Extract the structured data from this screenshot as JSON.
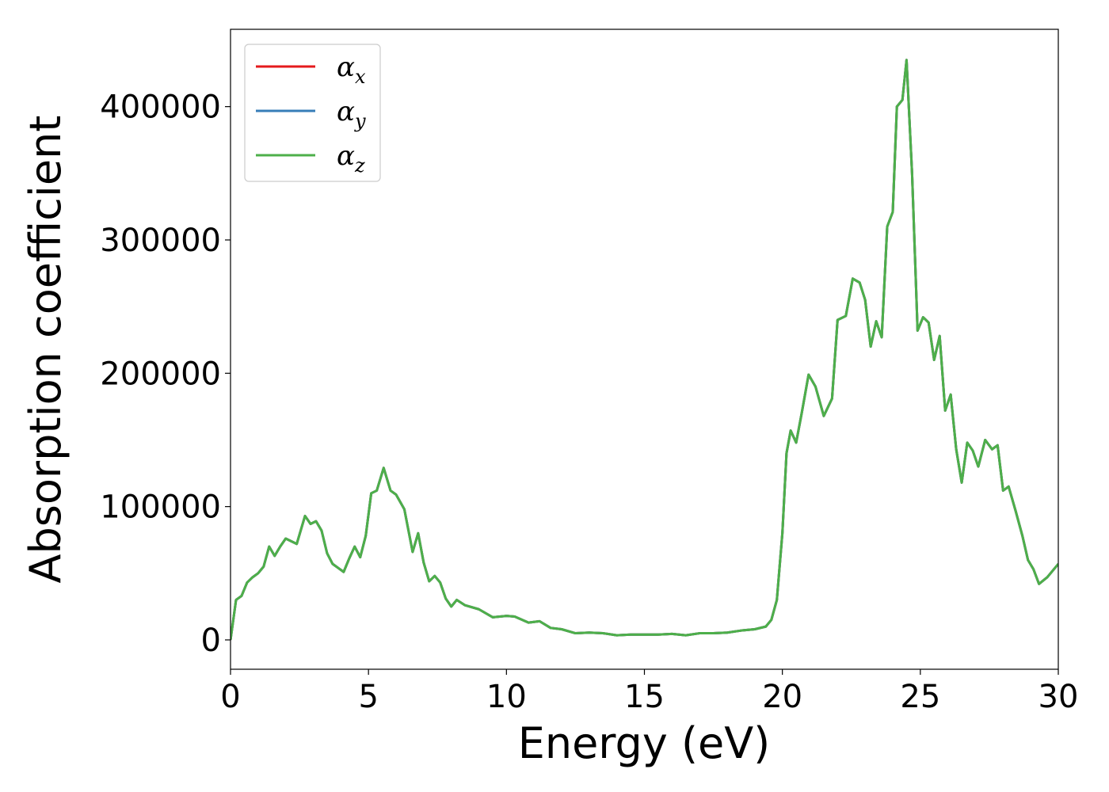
{
  "chart_data": {
    "type": "line",
    "xlabel": "Energy (eV)",
    "ylabel": "Absorption coefficient",
    "xlim": [
      0,
      30
    ],
    "ylim": [
      -22000,
      458000
    ],
    "xticks": [
      0,
      5,
      10,
      15,
      20,
      25,
      30
    ],
    "xtick_labels": [
      "0",
      "5",
      "10",
      "15",
      "20",
      "25",
      "30"
    ],
    "yticks": [
      0,
      100000,
      200000,
      300000,
      400000
    ],
    "ytick_labels": [
      "0",
      "100000",
      "200000",
      "300000",
      "400000"
    ],
    "grid": false,
    "legend_position": "top-left",
    "series": [
      {
        "name": "α_x",
        "symbol": "α",
        "subscript": "x",
        "color": "#e41a1c",
        "x": [
          0,
          0.2,
          0.4,
          0.6,
          0.8,
          1.0,
          1.2,
          1.4,
          1.6,
          1.8,
          2.0,
          2.2,
          2.4,
          2.7,
          2.9,
          3.1,
          3.3,
          3.5,
          3.7,
          3.9,
          4.1,
          4.3,
          4.5,
          4.7,
          4.9,
          5.1,
          5.3,
          5.55,
          5.8,
          6.0,
          6.3,
          6.6,
          6.8,
          7.0,
          7.2,
          7.4,
          7.6,
          7.8,
          8.0,
          8.2,
          8.5,
          9.0,
          9.5,
          10.0,
          10.3,
          10.8,
          11.2,
          11.6,
          12.0,
          12.5,
          13.0,
          13.5,
          14.0,
          14.5,
          15.0,
          15.5,
          16.0,
          16.5,
          17.0,
          17.5,
          18.0,
          18.5,
          19.0,
          19.4,
          19.6,
          19.8,
          20.0,
          20.15,
          20.3,
          20.5,
          20.7,
          20.95,
          21.2,
          21.5,
          21.8,
          22.0,
          22.3,
          22.55,
          22.8,
          23.0,
          23.2,
          23.4,
          23.6,
          23.8,
          24.0,
          24.15,
          24.35,
          24.5,
          24.7,
          24.9,
          25.1,
          25.3,
          25.5,
          25.7,
          25.9,
          26.1,
          26.3,
          26.5,
          26.7,
          26.9,
          27.1,
          27.35,
          27.6,
          27.8,
          28.0,
          28.2,
          28.45,
          28.7,
          28.9,
          29.1,
          29.3,
          29.6,
          29.8,
          30.0
        ],
        "values": [
          0,
          30000,
          33000,
          43000,
          47000,
          50000,
          55000,
          70000,
          63000,
          70000,
          76000,
          74000,
          72000,
          93000,
          87000,
          89000,
          82000,
          65000,
          57000,
          54000,
          51000,
          61000,
          70000,
          62000,
          78000,
          110000,
          112000,
          129000,
          112000,
          109000,
          98000,
          66000,
          80000,
          58000,
          44000,
          48000,
          43000,
          31000,
          25000,
          30000,
          26000,
          23000,
          17000,
          18000,
          17500,
          13000,
          14000,
          9000,
          8000,
          5000,
          5500,
          5000,
          3500,
          4000,
          4000,
          4000,
          4500,
          3500,
          5000,
          5000,
          5500,
          7000,
          8000,
          10000,
          15000,
          30000,
          80000,
          140000,
          157000,
          148000,
          170000,
          199000,
          190000,
          168000,
          181000,
          240000,
          243000,
          271000,
          268000,
          255000,
          220000,
          239000,
          227000,
          310000,
          321000,
          400000,
          405000,
          435000,
          350000,
          232000,
          242000,
          238000,
          210000,
          228000,
          172000,
          184000,
          143000,
          118000,
          148000,
          142000,
          130000,
          150000,
          143000,
          146000,
          112000,
          115000,
          97000,
          78000,
          60000,
          53000,
          42000,
          47000,
          52000,
          57000
        ]
      },
      {
        "name": "α_y",
        "symbol": "α",
        "subscript": "y",
        "color": "#377eb8",
        "x": [
          0,
          0.2,
          0.4,
          0.6,
          0.8,
          1.0,
          1.2,
          1.4,
          1.6,
          1.8,
          2.0,
          2.2,
          2.4,
          2.7,
          2.9,
          3.1,
          3.3,
          3.5,
          3.7,
          3.9,
          4.1,
          4.3,
          4.5,
          4.7,
          4.9,
          5.1,
          5.3,
          5.55,
          5.8,
          6.0,
          6.3,
          6.6,
          6.8,
          7.0,
          7.2,
          7.4,
          7.6,
          7.8,
          8.0,
          8.2,
          8.5,
          9.0,
          9.5,
          10.0,
          10.3,
          10.8,
          11.2,
          11.6,
          12.0,
          12.5,
          13.0,
          13.5,
          14.0,
          14.5,
          15.0,
          15.5,
          16.0,
          16.5,
          17.0,
          17.5,
          18.0,
          18.5,
          19.0,
          19.4,
          19.6,
          19.8,
          20.0,
          20.15,
          20.3,
          20.5,
          20.7,
          20.95,
          21.2,
          21.5,
          21.8,
          22.0,
          22.3,
          22.55,
          22.8,
          23.0,
          23.2,
          23.4,
          23.6,
          23.8,
          24.0,
          24.15,
          24.35,
          24.5,
          24.7,
          24.9,
          25.1,
          25.3,
          25.5,
          25.7,
          25.9,
          26.1,
          26.3,
          26.5,
          26.7,
          26.9,
          27.1,
          27.35,
          27.6,
          27.8,
          28.0,
          28.2,
          28.45,
          28.7,
          28.9,
          29.1,
          29.3,
          29.6,
          29.8,
          30.0
        ],
        "values": [
          0,
          30000,
          33000,
          43000,
          47000,
          50000,
          55000,
          70000,
          63000,
          70000,
          76000,
          74000,
          72000,
          93000,
          87000,
          89000,
          82000,
          65000,
          57000,
          54000,
          51000,
          61000,
          70000,
          62000,
          78000,
          110000,
          112000,
          129000,
          112000,
          109000,
          98000,
          66000,
          80000,
          58000,
          44000,
          48000,
          43000,
          31000,
          25000,
          30000,
          26000,
          23000,
          17000,
          18000,
          17500,
          13000,
          14000,
          9000,
          8000,
          5000,
          5500,
          5000,
          3500,
          4000,
          4000,
          4000,
          4500,
          3500,
          5000,
          5000,
          5500,
          7000,
          8000,
          10000,
          15000,
          30000,
          80000,
          140000,
          157000,
          148000,
          170000,
          199000,
          190000,
          168000,
          181000,
          240000,
          243000,
          271000,
          268000,
          255000,
          220000,
          239000,
          227000,
          310000,
          321000,
          400000,
          405000,
          435000,
          350000,
          232000,
          242000,
          238000,
          210000,
          228000,
          172000,
          184000,
          143000,
          118000,
          148000,
          142000,
          130000,
          150000,
          143000,
          146000,
          112000,
          115000,
          97000,
          78000,
          60000,
          53000,
          42000,
          47000,
          52000,
          57000
        ]
      },
      {
        "name": "α_z",
        "symbol": "α",
        "subscript": "z",
        "color": "#4daf4a",
        "x": [
          0,
          0.2,
          0.4,
          0.6,
          0.8,
          1.0,
          1.2,
          1.4,
          1.6,
          1.8,
          2.0,
          2.2,
          2.4,
          2.7,
          2.9,
          3.1,
          3.3,
          3.5,
          3.7,
          3.9,
          4.1,
          4.3,
          4.5,
          4.7,
          4.9,
          5.1,
          5.3,
          5.55,
          5.8,
          6.0,
          6.3,
          6.6,
          6.8,
          7.0,
          7.2,
          7.4,
          7.6,
          7.8,
          8.0,
          8.2,
          8.5,
          9.0,
          9.5,
          10.0,
          10.3,
          10.8,
          11.2,
          11.6,
          12.0,
          12.5,
          13.0,
          13.5,
          14.0,
          14.5,
          15.0,
          15.5,
          16.0,
          16.5,
          17.0,
          17.5,
          18.0,
          18.5,
          19.0,
          19.4,
          19.6,
          19.8,
          20.0,
          20.15,
          20.3,
          20.5,
          20.7,
          20.95,
          21.2,
          21.5,
          21.8,
          22.0,
          22.3,
          22.55,
          22.8,
          23.0,
          23.2,
          23.4,
          23.6,
          23.8,
          24.0,
          24.15,
          24.35,
          24.5,
          24.7,
          24.9,
          25.1,
          25.3,
          25.5,
          25.7,
          25.9,
          26.1,
          26.3,
          26.5,
          26.7,
          26.9,
          27.1,
          27.35,
          27.6,
          27.8,
          28.0,
          28.2,
          28.45,
          28.7,
          28.9,
          29.1,
          29.3,
          29.6,
          29.8,
          30.0
        ],
        "values": [
          0,
          30000,
          33000,
          43000,
          47000,
          50000,
          55000,
          70000,
          63000,
          70000,
          76000,
          74000,
          72000,
          93000,
          87000,
          89000,
          82000,
          65000,
          57000,
          54000,
          51000,
          61000,
          70000,
          62000,
          78000,
          110000,
          112000,
          129000,
          112000,
          109000,
          98000,
          66000,
          80000,
          58000,
          44000,
          48000,
          43000,
          31000,
          25000,
          30000,
          26000,
          23000,
          17000,
          18000,
          17500,
          13000,
          14000,
          9000,
          8000,
          5000,
          5500,
          5000,
          3500,
          4000,
          4000,
          4000,
          4500,
          3500,
          5000,
          5000,
          5500,
          7000,
          8000,
          10000,
          15000,
          30000,
          80000,
          140000,
          157000,
          148000,
          170000,
          199000,
          190000,
          168000,
          181000,
          240000,
          243000,
          271000,
          268000,
          255000,
          220000,
          239000,
          227000,
          310000,
          321000,
          400000,
          405000,
          435000,
          350000,
          232000,
          242000,
          238000,
          210000,
          228000,
          172000,
          184000,
          143000,
          118000,
          148000,
          142000,
          130000,
          150000,
          143000,
          146000,
          112000,
          115000,
          97000,
          78000,
          60000,
          53000,
          42000,
          47000,
          52000,
          57000
        ]
      }
    ]
  }
}
